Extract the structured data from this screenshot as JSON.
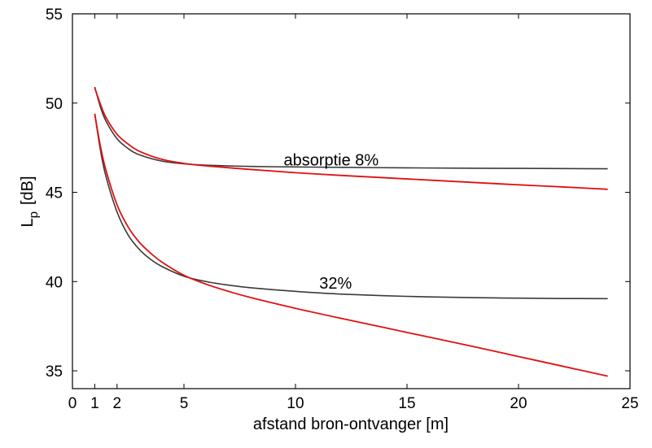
{
  "chart_data": {
    "type": "line",
    "title": "",
    "xlabel": "afstand bron-ontvanger [m]",
    "ylabel": "L",
    "ylabel_subscript": "p",
    "ylabel_unit": "[dB]",
    "xlim": [
      0,
      25
    ],
    "ylim": [
      34,
      55
    ],
    "xticks": [
      0,
      1,
      2,
      5,
      10,
      15,
      20,
      25
    ],
    "yticks": [
      35,
      40,
      45,
      50,
      55
    ],
    "grid": false,
    "colors": {
      "measured": "#3a3a3a",
      "theory": "#e01010",
      "axis": "#000000"
    },
    "annotations": [
      {
        "text": "absorptie 8%",
        "x": 11.6,
        "y": 46.5
      },
      {
        "text": "32%",
        "x": 11.8,
        "y": 39.6
      }
    ],
    "series": [
      {
        "group": "8%",
        "style": "measured",
        "x": [
          1,
          1.25,
          1.5,
          2,
          2.5,
          3,
          4,
          5,
          6,
          8,
          10,
          12,
          15,
          18,
          20,
          22,
          24
        ],
        "y": [
          50.9,
          49.8,
          49.0,
          48.0,
          47.45,
          47.1,
          46.75,
          46.6,
          46.52,
          46.45,
          46.42,
          46.4,
          46.37,
          46.35,
          46.34,
          46.33,
          46.32
        ]
      },
      {
        "group": "8%",
        "style": "theory",
        "x": [
          1,
          1.25,
          1.5,
          2,
          2.5,
          3,
          4,
          5,
          6,
          8,
          10,
          12,
          15,
          18,
          20,
          22,
          24
        ],
        "y": [
          50.85,
          49.95,
          49.2,
          48.25,
          47.7,
          47.3,
          46.85,
          46.62,
          46.48,
          46.28,
          46.1,
          45.95,
          45.75,
          45.55,
          45.42,
          45.3,
          45.17
        ]
      },
      {
        "group": "32%",
        "style": "measured",
        "x": [
          1,
          1.25,
          1.5,
          2,
          2.5,
          3,
          3.5,
          4,
          5,
          6,
          7,
          8,
          10,
          12,
          15,
          18,
          20,
          22,
          24
        ],
        "y": [
          49.4,
          47.4,
          45.9,
          43.9,
          42.6,
          41.8,
          41.25,
          40.85,
          40.3,
          40.0,
          39.8,
          39.65,
          39.45,
          39.3,
          39.17,
          39.1,
          39.07,
          39.05,
          39.04
        ]
      },
      {
        "group": "32%",
        "style": "theory",
        "x": [
          1,
          1.25,
          1.5,
          2,
          2.5,
          3,
          3.5,
          4,
          5,
          6,
          7,
          8,
          10,
          12,
          15,
          18,
          20,
          22,
          24
        ],
        "y": [
          49.4,
          47.6,
          46.25,
          44.3,
          43.05,
          42.2,
          41.6,
          41.1,
          40.35,
          39.85,
          39.45,
          39.1,
          38.5,
          37.95,
          37.15,
          36.35,
          35.8,
          35.25,
          34.7
        ]
      }
    ]
  }
}
